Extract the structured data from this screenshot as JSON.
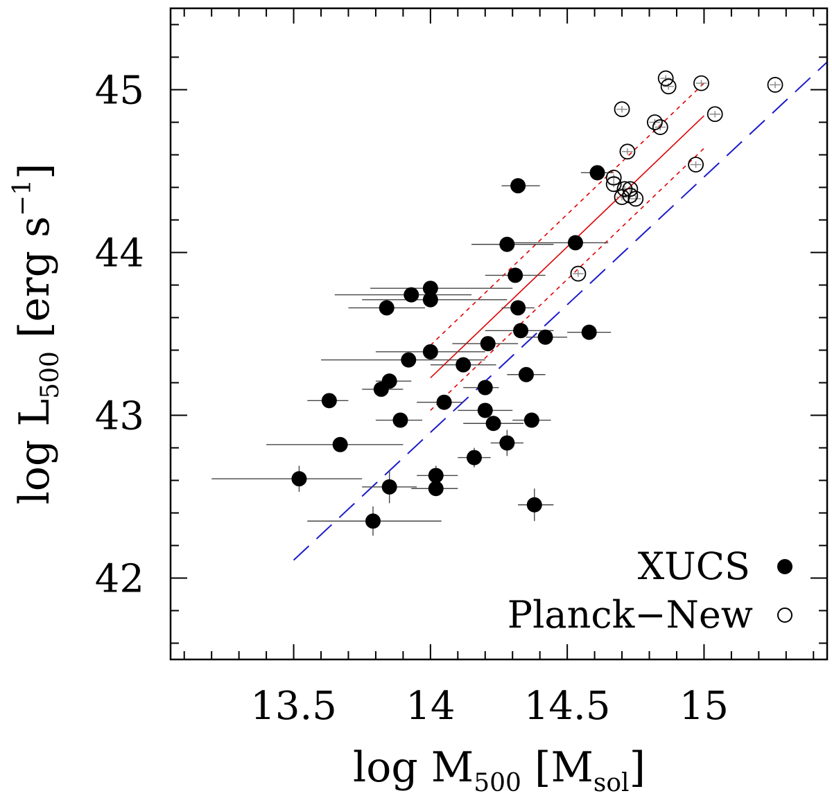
{
  "chart_data": {
    "type": "scatter",
    "xlim": [
      13.05,
      15.45
    ],
    "ylim": [
      41.5,
      45.5
    ],
    "x_ticks": [
      13.5,
      14,
      14.5,
      15
    ],
    "x_tick_labels": [
      "13.5",
      "14",
      "14.5",
      "15"
    ],
    "y_ticks": [
      42,
      43,
      44,
      45
    ],
    "y_tick_labels": [
      "42",
      "43",
      "44",
      "45"
    ],
    "xlabel": {
      "main": "log M",
      "sub": "500",
      "tail": " [M",
      "unit_sub": "sol",
      "close": "]"
    },
    "ylabel": {
      "main": "log L",
      "sub": "500",
      "tail": " [erg s",
      "sup": "−1",
      "close": "]"
    },
    "legend": [
      {
        "label": "XUCS",
        "marker": "filled",
        "color": "#1a1acc"
      },
      {
        "label": "Planck−New",
        "marker": "open",
        "color": "#000000"
      }
    ],
    "series": [
      {
        "name": "XUCS",
        "marker": "filled",
        "points": [
          {
            "x": 13.52,
            "y": 42.61,
            "xlo": 13.2,
            "xhi": 13.75,
            "ylo": 42.53,
            "yhi": 42.69
          },
          {
            "x": 13.63,
            "y": 43.09,
            "xlo": 13.55,
            "xhi": 13.7,
            "ylo": 43.06,
            "yhi": 43.12
          },
          {
            "x": 13.67,
            "y": 42.82,
            "xlo": 13.4,
            "xhi": 13.9,
            "ylo": 42.79,
            "yhi": 42.85
          },
          {
            "x": 13.79,
            "y": 42.35,
            "xlo": 13.55,
            "xhi": 14.04,
            "ylo": 42.26,
            "yhi": 42.44
          },
          {
            "x": 13.82,
            "y": 43.16,
            "xlo": 13.75,
            "xhi": 13.9,
            "ylo": 43.13,
            "yhi": 43.19
          },
          {
            "x": 13.85,
            "y": 43.21,
            "xlo": 13.8,
            "xhi": 13.93,
            "ylo": 43.18,
            "yhi": 43.24
          },
          {
            "x": 13.85,
            "y": 42.56,
            "xlo": 13.75,
            "xhi": 13.95,
            "ylo": 42.46,
            "yhi": 42.66
          },
          {
            "x": 13.89,
            "y": 42.97,
            "xlo": 13.8,
            "xhi": 13.97,
            "ylo": 42.94,
            "yhi": 43.0
          },
          {
            "x": 13.84,
            "y": 43.66,
            "xlo": 13.7,
            "xhi": 13.98,
            "ylo": 43.63,
            "yhi": 43.69
          },
          {
            "x": 13.92,
            "y": 43.34,
            "xlo": 13.6,
            "xhi": 14.2,
            "ylo": 43.31,
            "yhi": 43.37
          },
          {
            "x": 13.93,
            "y": 43.74,
            "xlo": 13.65,
            "xhi": 14.15,
            "ylo": 43.71,
            "yhi": 43.77
          },
          {
            "x": 14.0,
            "y": 43.78,
            "xlo": 13.78,
            "xhi": 14.3,
            "ylo": 43.75,
            "yhi": 43.81
          },
          {
            "x": 14.0,
            "y": 43.71,
            "xlo": 13.75,
            "xhi": 14.28,
            "ylo": 43.68,
            "yhi": 43.74
          },
          {
            "x": 14.0,
            "y": 43.39,
            "xlo": 13.8,
            "xhi": 14.2,
            "ylo": 43.36,
            "yhi": 43.42
          },
          {
            "x": 14.02,
            "y": 42.63,
            "xlo": 13.95,
            "xhi": 14.1,
            "ylo": 42.57,
            "yhi": 42.69
          },
          {
            "x": 14.02,
            "y": 42.55,
            "xlo": 13.93,
            "xhi": 14.1,
            "ylo": 42.52,
            "yhi": 42.58
          },
          {
            "x": 14.05,
            "y": 43.08,
            "xlo": 13.95,
            "xhi": 14.12,
            "ylo": 43.05,
            "yhi": 43.11
          },
          {
            "x": 14.12,
            "y": 43.31,
            "xlo": 14.0,
            "xhi": 14.24,
            "ylo": 43.28,
            "yhi": 43.34
          },
          {
            "x": 14.16,
            "y": 42.74,
            "xlo": 14.1,
            "xhi": 14.22,
            "ylo": 42.68,
            "yhi": 42.8
          },
          {
            "x": 14.2,
            "y": 43.17,
            "xlo": 14.12,
            "xhi": 14.25,
            "ylo": 43.14,
            "yhi": 43.2
          },
          {
            "x": 14.2,
            "y": 43.03,
            "xlo": 14.1,
            "xhi": 14.3,
            "ylo": 43.0,
            "yhi": 43.06
          },
          {
            "x": 14.21,
            "y": 43.44,
            "xlo": 14.08,
            "xhi": 14.32,
            "ylo": 43.41,
            "yhi": 43.47
          },
          {
            "x": 14.23,
            "y": 42.95,
            "xlo": 14.12,
            "xhi": 14.34,
            "ylo": 42.92,
            "yhi": 42.98
          },
          {
            "x": 14.28,
            "y": 44.05,
            "xlo": 14.15,
            "xhi": 14.45,
            "ylo": 44.02,
            "yhi": 44.08
          },
          {
            "x": 14.28,
            "y": 42.83,
            "xlo": 14.22,
            "xhi": 14.34,
            "ylo": 42.75,
            "yhi": 42.91
          },
          {
            "x": 14.31,
            "y": 43.86,
            "xlo": 14.2,
            "xhi": 14.42,
            "ylo": 43.83,
            "yhi": 43.89
          },
          {
            "x": 14.32,
            "y": 43.66,
            "xlo": 14.26,
            "xhi": 14.38,
            "ylo": 43.63,
            "yhi": 43.69
          },
          {
            "x": 14.32,
            "y": 44.41,
            "xlo": 14.26,
            "xhi": 14.4,
            "ylo": 44.38,
            "yhi": 44.44
          },
          {
            "x": 14.33,
            "y": 43.52,
            "xlo": 14.2,
            "xhi": 14.45,
            "ylo": 43.49,
            "yhi": 43.55
          },
          {
            "x": 14.35,
            "y": 43.25,
            "xlo": 14.28,
            "xhi": 14.42,
            "ylo": 43.22,
            "yhi": 43.28
          },
          {
            "x": 14.37,
            "y": 42.97,
            "xlo": 14.3,
            "xhi": 14.44,
            "ylo": 42.94,
            "yhi": 43.0
          },
          {
            "x": 14.38,
            "y": 42.45,
            "xlo": 14.32,
            "xhi": 14.45,
            "ylo": 42.35,
            "yhi": 42.55
          },
          {
            "x": 14.42,
            "y": 43.48,
            "xlo": 14.35,
            "xhi": 14.5,
            "ylo": 43.45,
            "yhi": 43.51
          },
          {
            "x": 14.53,
            "y": 44.06,
            "xlo": 14.3,
            "xhi": 14.65,
            "ylo": 44.03,
            "yhi": 44.09
          },
          {
            "x": 14.58,
            "y": 43.51,
            "xlo": 14.5,
            "xhi": 14.66,
            "ylo": 43.48,
            "yhi": 43.54
          },
          {
            "x": 14.61,
            "y": 44.49,
            "xlo": 14.55,
            "xhi": 14.67,
            "ylo": 44.45,
            "yhi": 44.53
          }
        ]
      },
      {
        "name": "Planck−New",
        "marker": "open",
        "points": [
          {
            "x": 14.54,
            "y": 43.87,
            "xlo": 14.52,
            "xhi": 14.56,
            "ylo": 43.85,
            "yhi": 43.89
          },
          {
            "x": 14.67,
            "y": 44.46,
            "xlo": 14.65,
            "xhi": 14.69,
            "ylo": 44.44,
            "yhi": 44.48
          },
          {
            "x": 14.67,
            "y": 44.42,
            "xlo": 14.65,
            "xhi": 14.69,
            "ylo": 44.4,
            "yhi": 44.44
          },
          {
            "x": 14.7,
            "y": 44.88,
            "xlo": 14.68,
            "xhi": 14.72,
            "ylo": 44.86,
            "yhi": 44.9
          },
          {
            "x": 14.7,
            "y": 44.34,
            "xlo": 14.68,
            "xhi": 14.72,
            "ylo": 44.32,
            "yhi": 44.36
          },
          {
            "x": 14.71,
            "y": 44.39,
            "xlo": 14.69,
            "xhi": 14.73,
            "ylo": 44.37,
            "yhi": 44.41
          },
          {
            "x": 14.72,
            "y": 44.62,
            "xlo": 14.7,
            "xhi": 14.74,
            "ylo": 44.6,
            "yhi": 44.64
          },
          {
            "x": 14.73,
            "y": 44.39,
            "xlo": 14.71,
            "xhi": 14.75,
            "ylo": 44.37,
            "yhi": 44.41
          },
          {
            "x": 14.73,
            "y": 44.35,
            "xlo": 14.71,
            "xhi": 14.75,
            "ylo": 44.33,
            "yhi": 44.37
          },
          {
            "x": 14.75,
            "y": 44.33,
            "xlo": 14.73,
            "xhi": 14.77,
            "ylo": 44.31,
            "yhi": 44.35
          },
          {
            "x": 14.82,
            "y": 44.8,
            "xlo": 14.8,
            "xhi": 14.84,
            "ylo": 44.78,
            "yhi": 44.82
          },
          {
            "x": 14.84,
            "y": 44.77,
            "xlo": 14.82,
            "xhi": 14.86,
            "ylo": 44.75,
            "yhi": 44.79
          },
          {
            "x": 14.86,
            "y": 45.07,
            "xlo": 14.84,
            "xhi": 14.88,
            "ylo": 45.05,
            "yhi": 45.09
          },
          {
            "x": 14.87,
            "y": 45.02,
            "xlo": 14.85,
            "xhi": 14.89,
            "ylo": 45.0,
            "yhi": 45.04
          },
          {
            "x": 14.97,
            "y": 44.54,
            "xlo": 14.95,
            "xhi": 14.99,
            "ylo": 44.52,
            "yhi": 44.56
          },
          {
            "x": 14.99,
            "y": 45.04,
            "xlo": 14.97,
            "xhi": 15.01,
            "ylo": 45.02,
            "yhi": 45.06
          },
          {
            "x": 15.04,
            "y": 44.85,
            "xlo": 15.02,
            "xhi": 15.06,
            "ylo": 44.83,
            "yhi": 44.87
          },
          {
            "x": 15.26,
            "y": 45.03,
            "xlo": 15.24,
            "xhi": 15.28,
            "ylo": 45.01,
            "yhi": 45.05
          }
        ]
      }
    ],
    "lines": [
      {
        "color": "#dd0000",
        "dash": "solid",
        "points": [
          [
            14.0,
            43.23
          ],
          [
            15.0,
            44.84
          ]
        ]
      },
      {
        "color": "#dd0000",
        "dash": "dotted",
        "points": [
          [
            14.0,
            43.43
          ],
          [
            15.0,
            45.04
          ]
        ]
      },
      {
        "color": "#dd0000",
        "dash": "dotted",
        "points": [
          [
            14.0,
            43.03
          ],
          [
            15.0,
            44.64
          ]
        ]
      },
      {
        "color": "#1a1acc",
        "dash": "long",
        "points": [
          [
            13.5,
            42.11
          ],
          [
            15.45,
            45.17
          ]
        ]
      }
    ]
  }
}
